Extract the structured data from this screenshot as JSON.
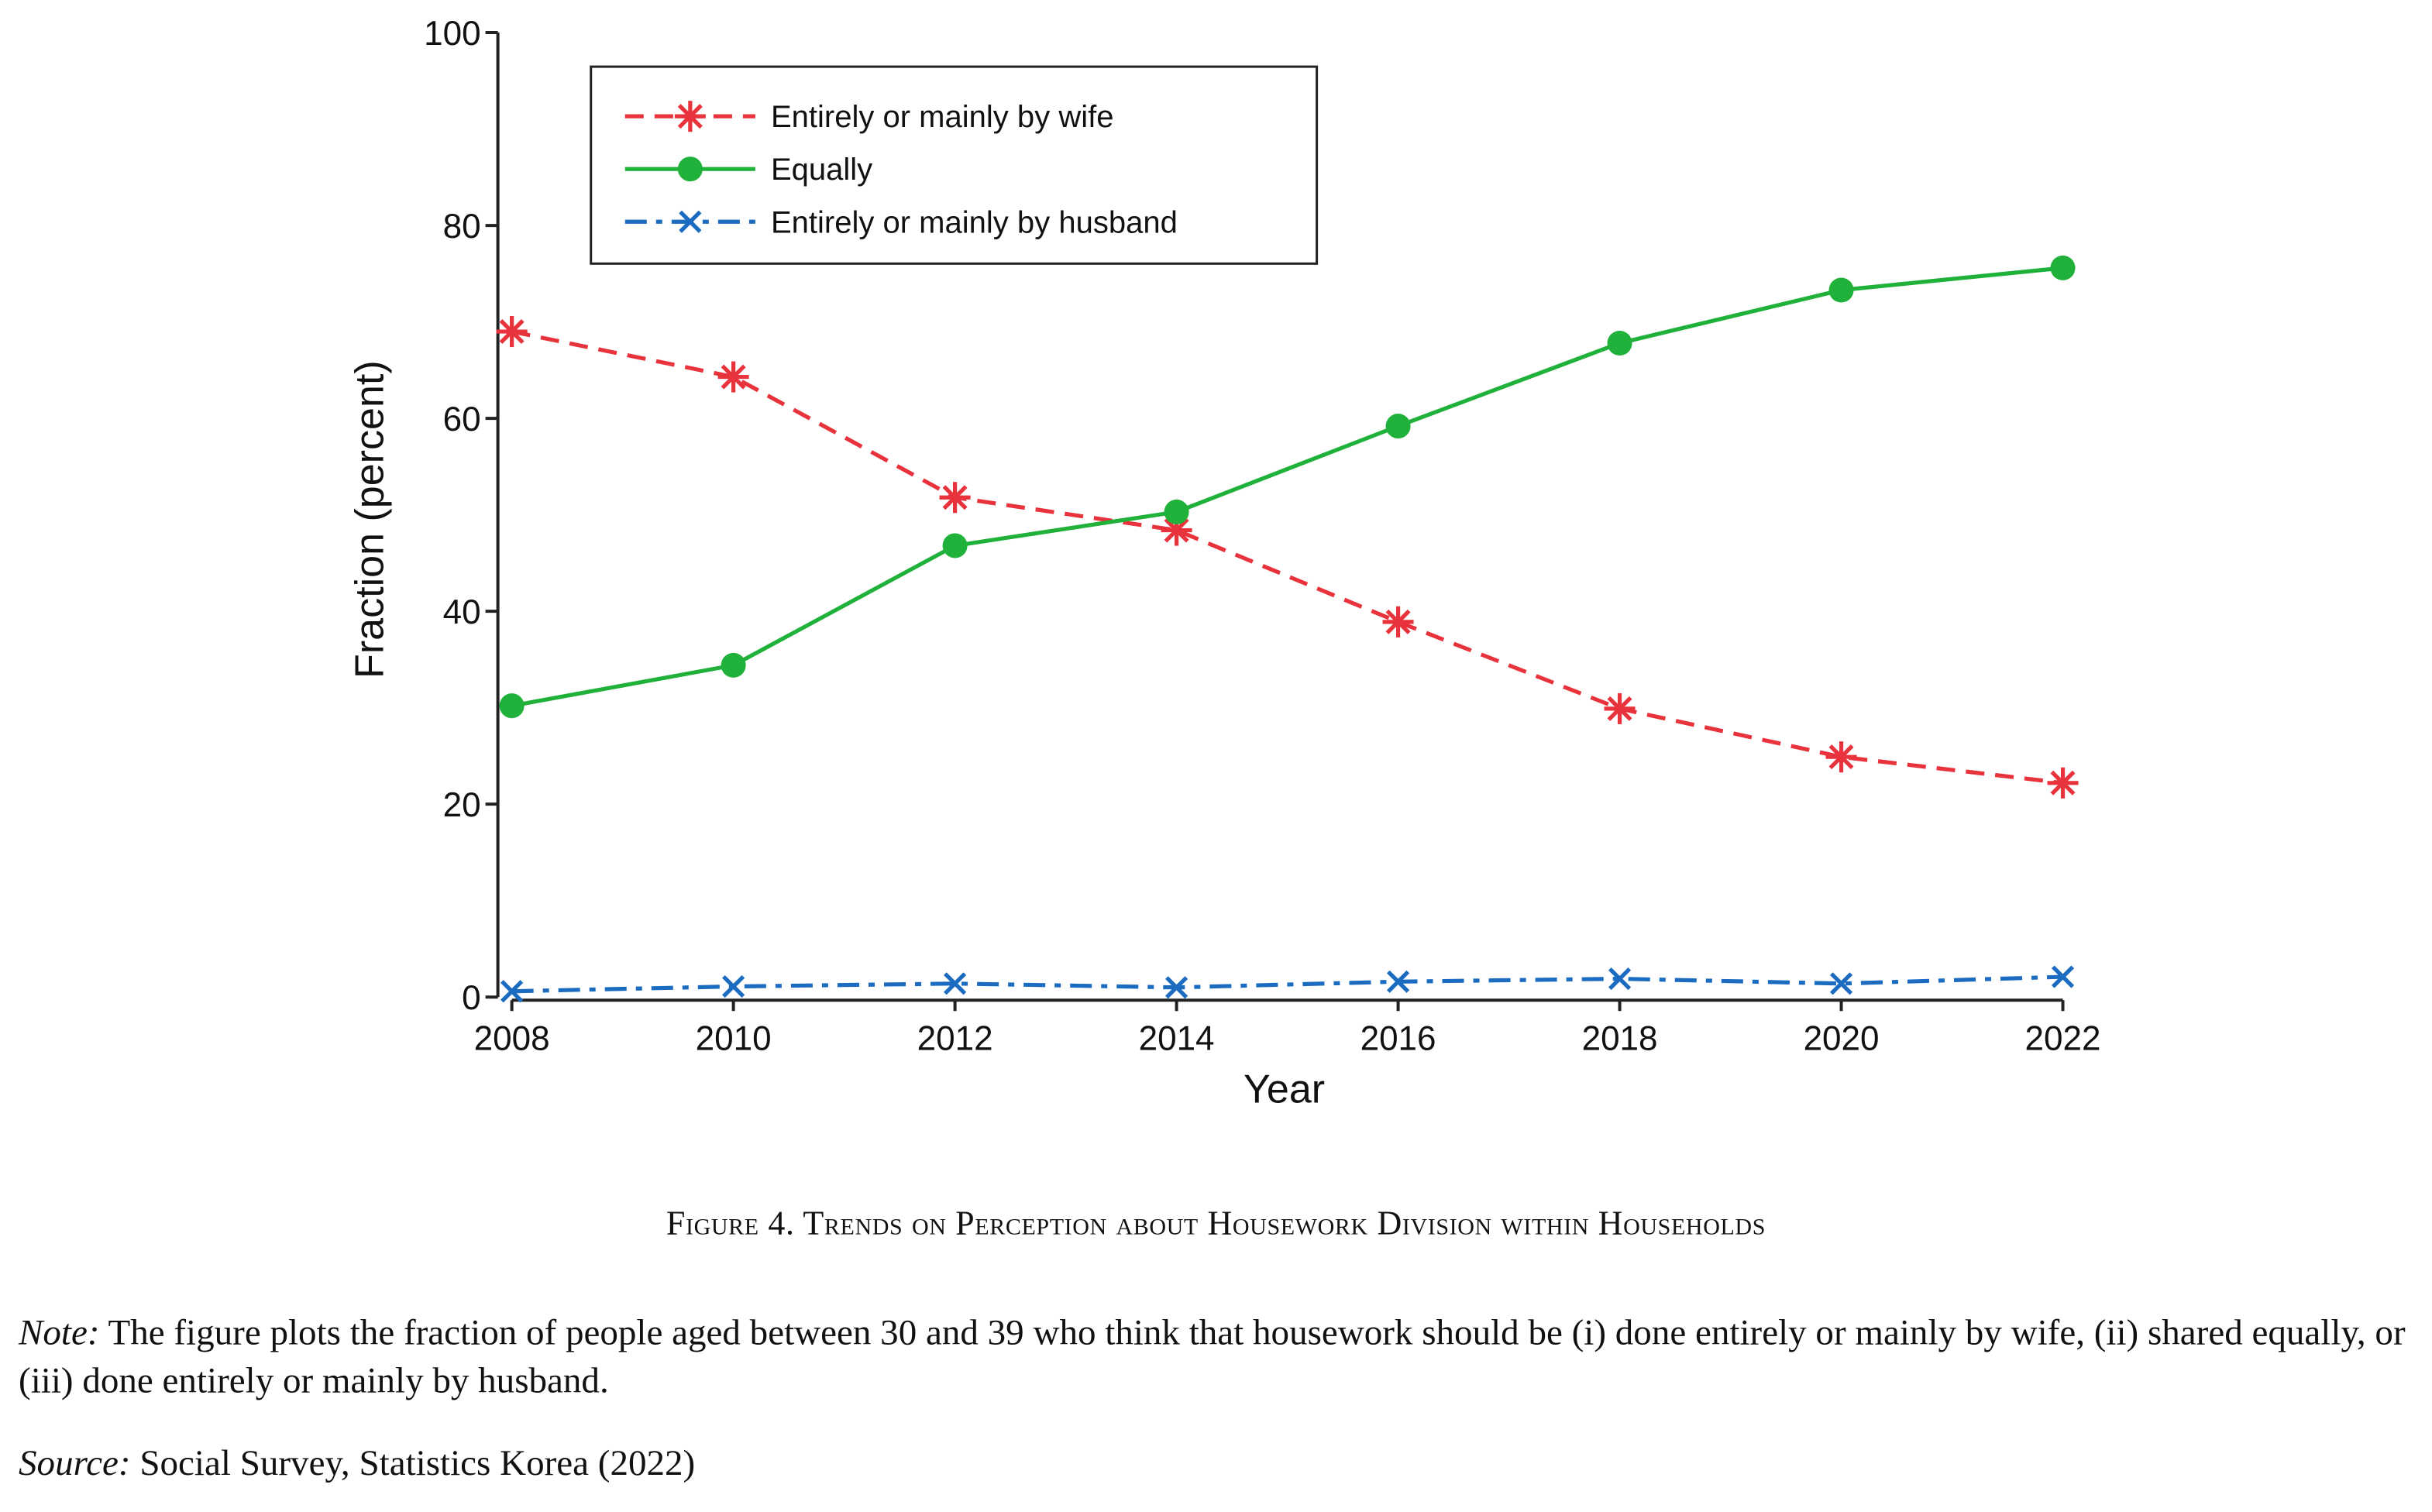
{
  "chart_data": {
    "type": "line",
    "x_label": "Year",
    "y_label": "Fraction (percent)",
    "x": [
      2008,
      2010,
      2012,
      2014,
      2016,
      2018,
      2020,
      2022
    ],
    "xlim": [
      2008,
      2022
    ],
    "xticks": [
      2008,
      2010,
      2012,
      2014,
      2016,
      2018,
      2020,
      2022
    ],
    "ylim": [
      0,
      100
    ],
    "yticks": [
      0,
      20,
      40,
      60,
      80,
      100
    ],
    "legend": "upper-left",
    "series": [
      {
        "name": "Entirely or mainly by wife",
        "color": "#e8333c",
        "dash": "dashed",
        "marker": "asterisk",
        "values": [
          69.0,
          64.3,
          51.8,
          48.4,
          38.9,
          29.9,
          24.9,
          22.2
        ]
      },
      {
        "name": "Equally",
        "color": "#1fb13a",
        "dash": "solid",
        "marker": "circle",
        "values": [
          30.2,
          34.4,
          46.8,
          50.3,
          59.2,
          67.8,
          73.3,
          75.6
        ]
      },
      {
        "name": "Entirely or mainly by husband",
        "color": "#1b6cc0",
        "dash": "dashdot",
        "marker": "x",
        "values": [
          0.6,
          1.1,
          1.4,
          1.0,
          1.6,
          1.9,
          1.4,
          2.1
        ]
      }
    ]
  },
  "caption": "Figure 4. Trends on Perception about Housework Division within Households",
  "note": {
    "label": "Note:",
    "text": "The figure plots the fraction of people aged between 30 and 39 who think that housework should be (i) done entirely or mainly by wife, (ii) shared equally, or (iii) done entirely or mainly by husband."
  },
  "source": {
    "label": "Source:",
    "text": "Social Survey, Statistics Korea (2022)"
  }
}
